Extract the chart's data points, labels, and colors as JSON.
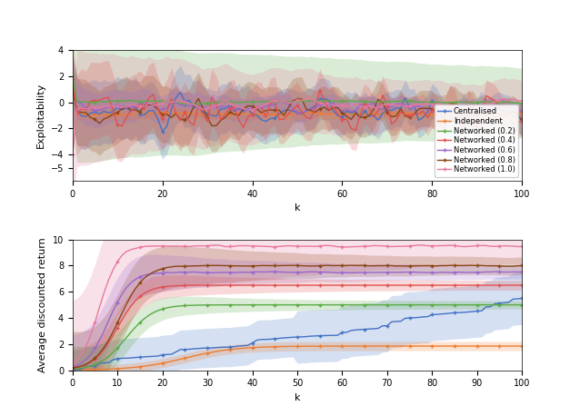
{
  "ylabel1": "Exploitability",
  "ylabel2": "Average discounted return",
  "xlabel": "k",
  "ylim1": [
    -6,
    4
  ],
  "ylim2": [
    0,
    10
  ],
  "legend_labels": [
    "Centralised",
    "Independent",
    "Networked (0.2)",
    "Networked (0.4)",
    "Networked (0.6)",
    "Networked (0.8)",
    "Networked (1.0)"
  ],
  "colors": [
    "#4472c4",
    "#ed7d31",
    "#5aaa45",
    "#e05050",
    "#9966cc",
    "#8b4513",
    "#e878a0"
  ],
  "alpha_fill": 0.22,
  "lw": 1.0,
  "ms": 3
}
